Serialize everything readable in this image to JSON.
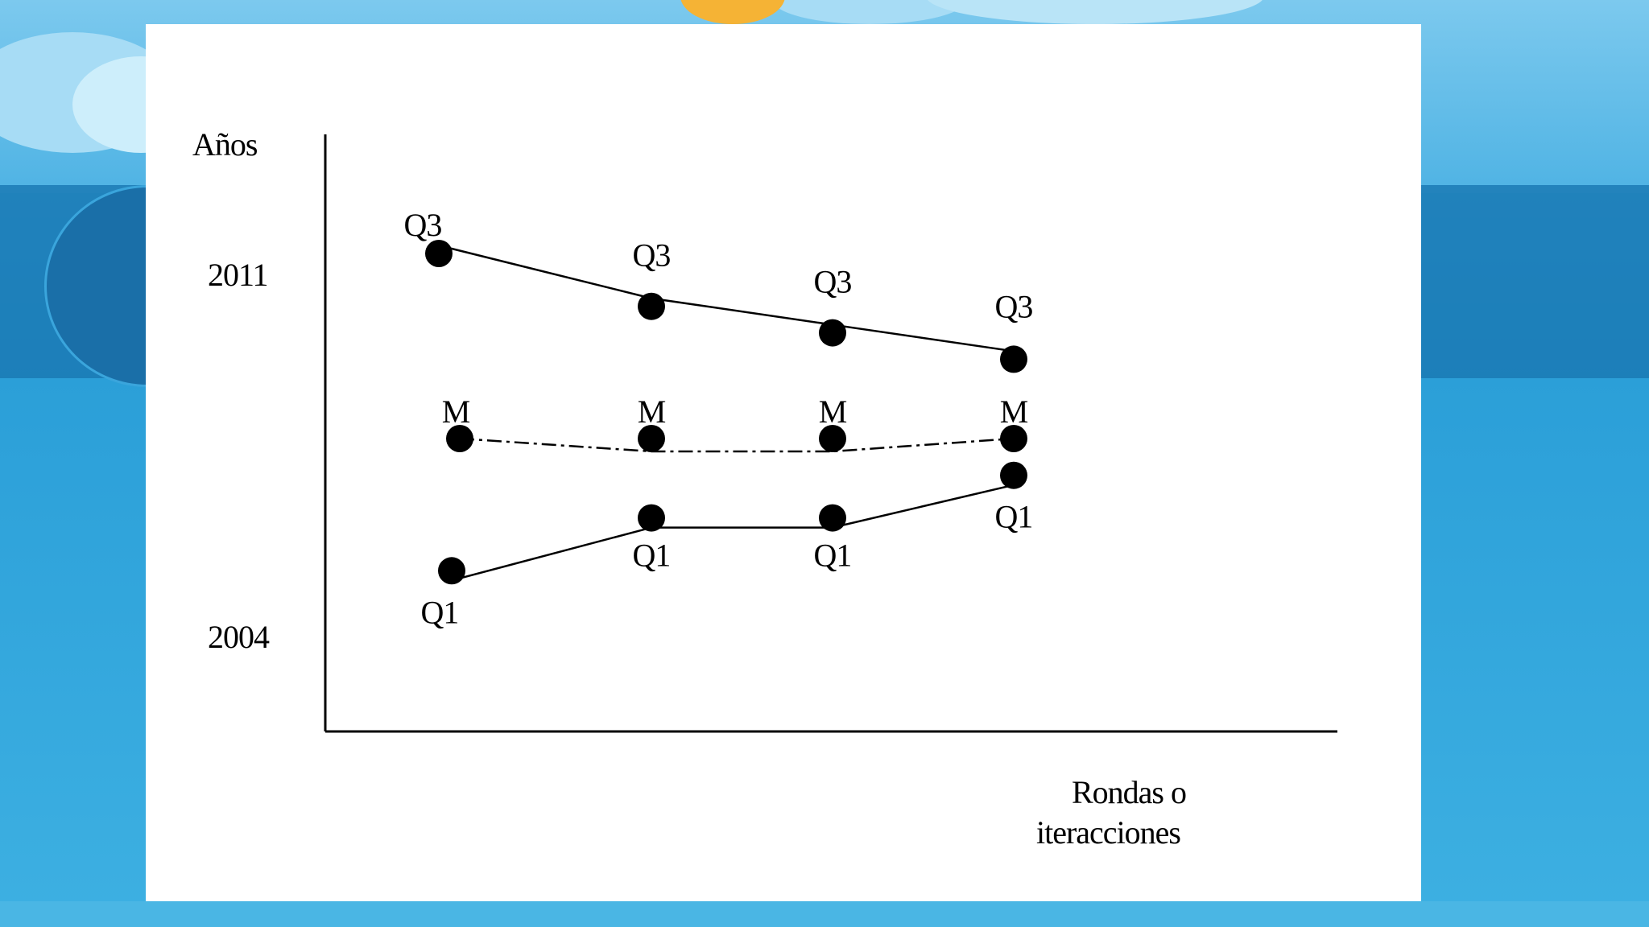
{
  "chart_data": {
    "type": "line",
    "ylabel": "Años",
    "xlabel": "Rondas o iteracciones",
    "y_ticks": [
      "2011",
      "2004"
    ],
    "x": [
      1,
      2,
      3,
      4
    ],
    "series": [
      {
        "name": "Q3",
        "line_style": "solid",
        "values": [
          2011.0,
          2010.0,
          2009.5,
          2009.0
        ]
      },
      {
        "name": "M",
        "line_style": "dashdot",
        "values": [
          2007.5,
          2007.5,
          2007.5,
          2007.5
        ]
      },
      {
        "name": "Q1",
        "line_style": "solid",
        "values": [
          2005.0,
          2006.0,
          2006.0,
          2006.5
        ]
      }
    ],
    "point_labels": {
      "Q3": [
        "Q3",
        "Q3",
        "Q3",
        "Q3"
      ],
      "M": [
        "M",
        "M",
        "M",
        "M"
      ],
      "Q1": [
        "Q1",
        "Q1",
        "Q1",
        "Q1"
      ]
    },
    "colors": {
      "line": "#000000",
      "marker": "#000000",
      "background": "#ffffff"
    },
    "grid": false,
    "legend": "none"
  }
}
